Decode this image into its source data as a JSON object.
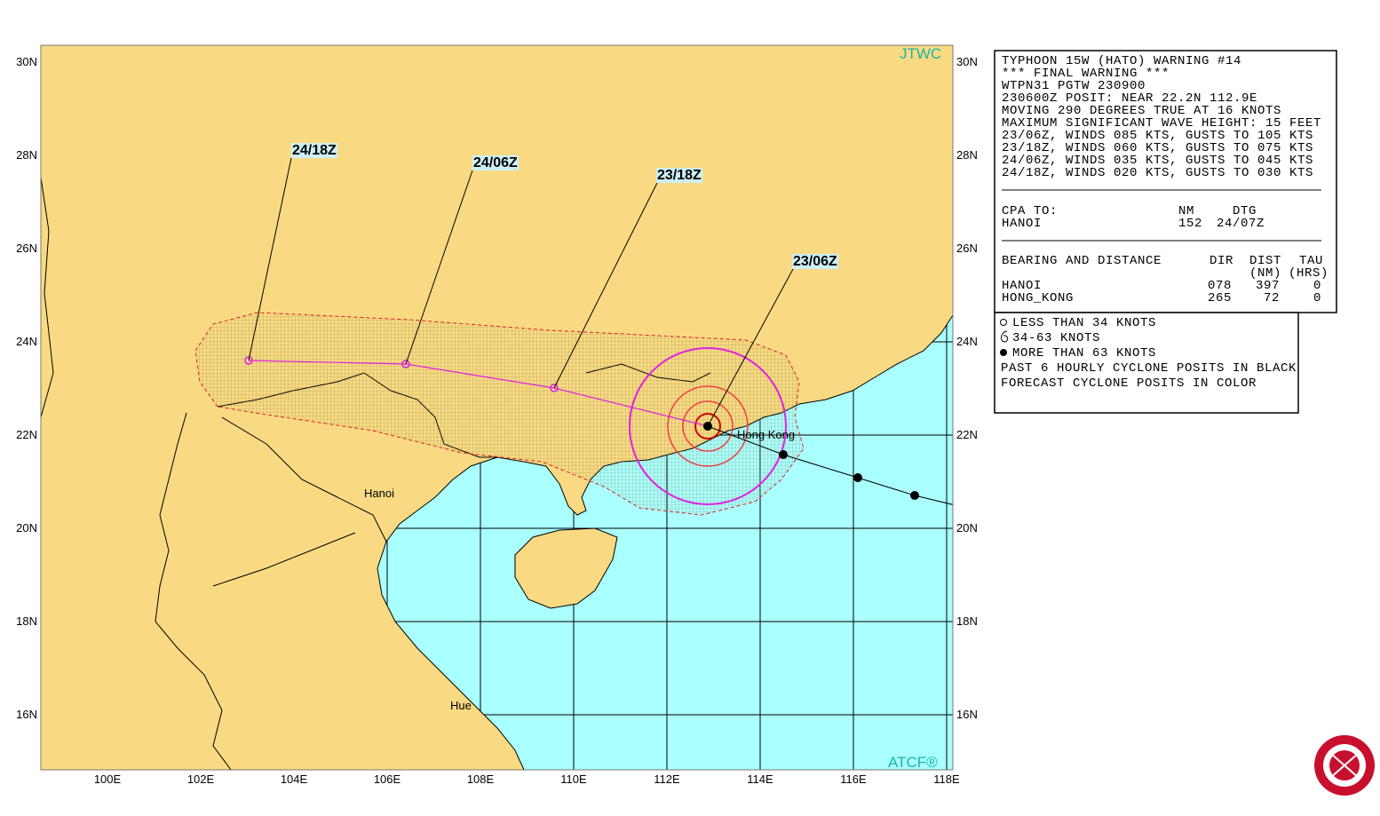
{
  "map": {
    "credit_top": "JTWC",
    "credit_bottom": "ATCF®",
    "lat_labels": [
      "30N",
      "28N",
      "26N",
      "24N",
      "22N",
      "20N",
      "18N",
      "16N"
    ],
    "lon_labels": [
      "100E",
      "102E",
      "104E",
      "106E",
      "108E",
      "110E",
      "112E",
      "114E",
      "116E",
      "118E"
    ],
    "places": [
      "Hanoi",
      "Hue",
      "Hong Kong"
    ],
    "forecast_labels": [
      "24/18Z",
      "24/06Z",
      "23/18Z",
      "23/06Z"
    ]
  },
  "warning": {
    "lines": [
      "TYPHOON 15W (HATO) WARNING #14",
      "*** FINAL WARNING ***",
      "WTPN31 PGTW 230900",
      "230600Z POSIT: NEAR 22.2N 112.9E",
      "MOVING 290 DEGREES TRUE AT 16 KNOTS",
      "MAXIMUM SIGNIFICANT WAVE HEIGHT: 15 FEET",
      "23/06Z, WINDS 085 KTS, GUSTS TO 105 KTS",
      "23/18Z, WINDS 060 KTS, GUSTS TO 075 KTS",
      "24/06Z, WINDS 035 KTS, GUSTS TO 045 KTS",
      "24/18Z, WINDS 020 KTS, GUSTS TO 030 KTS"
    ]
  },
  "cpa": {
    "header": [
      "CPA TO:",
      "NM",
      "DTG"
    ],
    "rows": [
      [
        "HANOI",
        "152",
        "24/07Z"
      ]
    ]
  },
  "bearing": {
    "header": [
      "BEARING AND DISTANCE",
      "DIR",
      "DIST",
      "TAU"
    ],
    "units": [
      "(NM)",
      "(HRS)"
    ],
    "rows": [
      [
        "HANOI",
        "078",
        "397",
        "0"
      ],
      [
        "HONG_KONG",
        "265",
        "72",
        "0"
      ]
    ]
  },
  "legend": [
    "LESS THAN 34 KNOTS",
    "34-63 KNOTS",
    "MORE THAN 63 KNOTS",
    "PAST 6 HOURLY CYCLONE POSITS IN BLACK",
    "FORECAST CYCLONE POSITS IN COLOR"
  ]
}
